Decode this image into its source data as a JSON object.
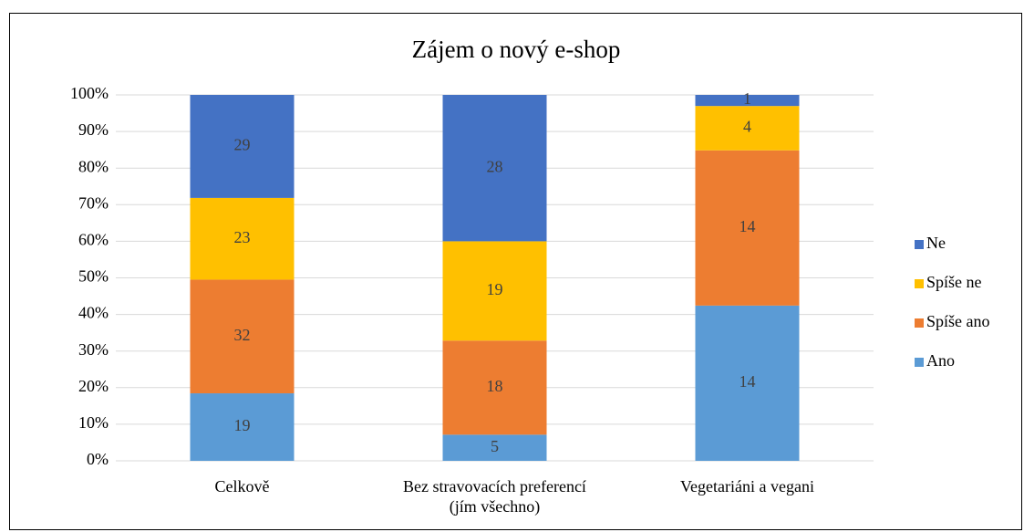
{
  "chart_data": {
    "type": "stacked100",
    "title": "Zájem o nový e-shop",
    "categories": [
      "Celkově",
      "Bez stravovacích preferencí\n(jím všechno)",
      "Vegetariáni a vegani"
    ],
    "series": [
      {
        "name": "Ano",
        "color": "#5b9bd5",
        "values": [
          19,
          5,
          14
        ]
      },
      {
        "name": "Spíše ano",
        "color": "#ed7d31",
        "values": [
          32,
          18,
          14
        ]
      },
      {
        "name": "Spíše ne",
        "color": "#ffc000",
        "values": [
          23,
          19,
          4
        ]
      },
      {
        "name": "Ne",
        "color": "#4472c4",
        "values": [
          29,
          28,
          1
        ]
      }
    ],
    "ylim": [
      0,
      100
    ],
    "yticks": [
      {
        "value": 0,
        "label": "0%"
      },
      {
        "value": 10,
        "label": "10%"
      },
      {
        "value": 20,
        "label": "20%"
      },
      {
        "value": 30,
        "label": "30%"
      },
      {
        "value": 40,
        "label": "40%"
      },
      {
        "value": 50,
        "label": "50%"
      },
      {
        "value": 60,
        "label": "60%"
      },
      {
        "value": 70,
        "label": "70%"
      },
      {
        "value": 80,
        "label": "80%"
      },
      {
        "value": 90,
        "label": "90%"
      },
      {
        "value": 100,
        "label": "100%"
      }
    ],
    "grid": true,
    "legend": "right"
  }
}
